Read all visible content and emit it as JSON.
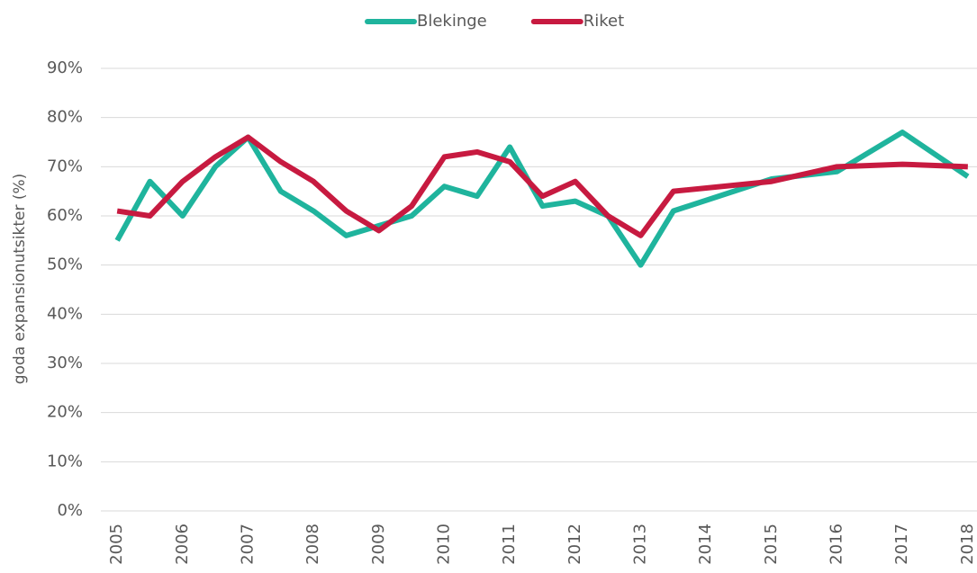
{
  "chart_data": {
    "type": "line",
    "y_label": "goda expansionutsikter (%)",
    "x": [
      2005,
      2005.5,
      2006,
      2006.5,
      2007,
      2007.5,
      2008,
      2008.5,
      2009,
      2009.5,
      2010,
      2010.5,
      2011,
      2011.5,
      2012,
      2012.5,
      2013,
      2013.5,
      2015,
      2016,
      2017,
      2018
    ],
    "series": [
      {
        "name": "Blekinge",
        "color": "#1fb49d",
        "values": [
          55,
          67,
          60,
          70,
          76,
          65,
          61,
          56,
          58,
          60,
          66,
          64,
          74,
          62,
          63,
          60,
          50,
          61,
          67.5,
          69,
          77,
          68
        ]
      },
      {
        "name": "Riket",
        "color": "#c71a40",
        "values": [
          61,
          60,
          67,
          72,
          76,
          71,
          67,
          61,
          57,
          62,
          72,
          73,
          71,
          64,
          67,
          60,
          56,
          65,
          67,
          70,
          70.5,
          70
        ]
      }
    ],
    "xlim": [
      2004.75,
      2018.14
    ],
    "xticks": [
      2005,
      2006,
      2007,
      2008,
      2009,
      2010,
      2011,
      2012,
      2013,
      2014,
      2015,
      2016,
      2017,
      2018
    ],
    "ylim": [
      0,
      90
    ],
    "yticks": [
      {
        "value": 0,
        "label": "0%"
      },
      {
        "value": 10,
        "label": "10%"
      },
      {
        "value": 20,
        "label": "20%"
      },
      {
        "value": 30,
        "label": "30%"
      },
      {
        "value": 40,
        "label": "40%"
      },
      {
        "value": 50,
        "label": "50%"
      },
      {
        "value": 60,
        "label": "60%"
      },
      {
        "value": 70,
        "label": "70%"
      },
      {
        "value": 80,
        "label": "80%"
      },
      {
        "value": 90,
        "label": "90%"
      }
    ],
    "grid": true,
    "legend": "top"
  }
}
